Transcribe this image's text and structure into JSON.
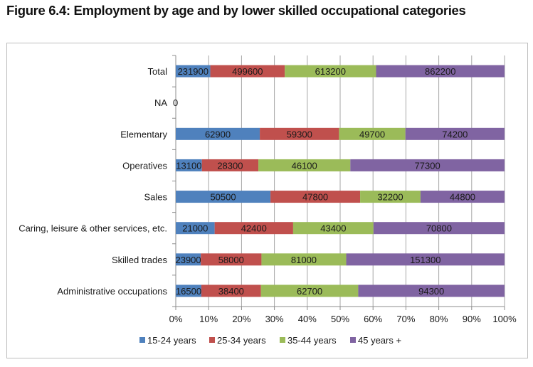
{
  "title": "Figure 6.4: Employment by age and by lower skilled occupational categories",
  "chart_data": {
    "type": "bar",
    "orientation": "horizontal",
    "stacking": "percent",
    "title": "Figure 6.4: Employment by age and by lower skilled occupational categories",
    "xlabel": "",
    "ylabel": "",
    "xlim": [
      0,
      100
    ],
    "x_ticks": [
      "0%",
      "10%",
      "20%",
      "30%",
      "40%",
      "50%",
      "60%",
      "70%",
      "80%",
      "90%",
      "100%"
    ],
    "grid": "vertical",
    "legend_position": "bottom",
    "categories": [
      "Total",
      "NA",
      "Elementary",
      "Operatives",
      "Sales",
      "Caring, leisure & other services, etc.",
      "Skilled trades",
      "Administrative occupations"
    ],
    "series": [
      {
        "name": "15-24 years",
        "color": "#4f81bd",
        "values": [
          231900,
          0,
          62900,
          13100,
          50500,
          21000,
          23900,
          16500
        ]
      },
      {
        "name": "25-34 years",
        "color": "#c0504d",
        "values": [
          499600,
          0,
          59300,
          28300,
          47800,
          42400,
          58000,
          38400
        ]
      },
      {
        "name": "35-44 years",
        "color": "#9bbb59",
        "values": [
          613200,
          0,
          49700,
          46100,
          32200,
          43400,
          81000,
          62700
        ]
      },
      {
        "name": "45 years +",
        "color": "#8064a2",
        "values": [
          862200,
          0,
          74200,
          77300,
          44800,
          70800,
          151300,
          94300
        ]
      }
    ],
    "data_labels": true,
    "na_label": "0"
  }
}
